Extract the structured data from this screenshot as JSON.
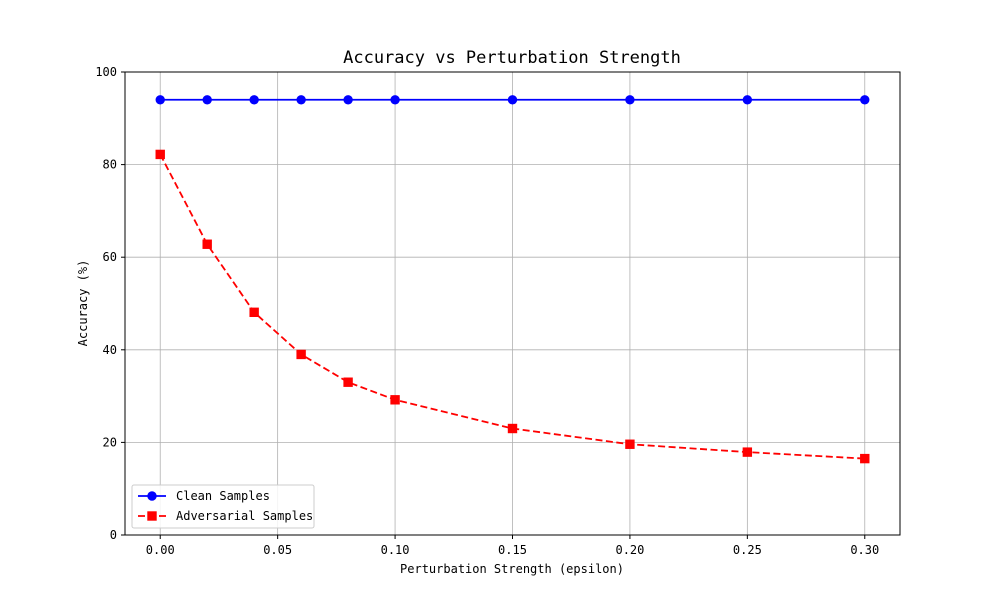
{
  "chart_data": {
    "type": "line",
    "title": "Accuracy vs Perturbation Strength",
    "xlabel": "Perturbation Strength (epsilon)",
    "ylabel": "Accuracy (%)",
    "x": [
      0.0,
      0.02,
      0.04,
      0.06,
      0.08,
      0.1,
      0.15,
      0.2,
      0.25,
      0.3
    ],
    "xlim": [
      -0.015,
      0.315
    ],
    "ylim": [
      0,
      100
    ],
    "xticks": [
      0.0,
      0.05,
      0.1,
      0.15,
      0.2,
      0.25,
      0.3
    ],
    "xtick_labels": [
      "0.00",
      "0.05",
      "0.10",
      "0.15",
      "0.20",
      "0.25",
      "0.30"
    ],
    "yticks": [
      0,
      20,
      40,
      60,
      80,
      100
    ],
    "ytick_labels": [
      "0",
      "20",
      "40",
      "60",
      "80",
      "100"
    ],
    "grid": true,
    "legend_position": "lower-left",
    "series": [
      {
        "name": "Clean Samples",
        "color": "#0000ff",
        "marker": "circle",
        "linestyle": "solid",
        "values": [
          94,
          94,
          94,
          94,
          94,
          94,
          94,
          94,
          94,
          94
        ]
      },
      {
        "name": "Adversarial Samples",
        "color": "#ff0000",
        "marker": "square",
        "linestyle": "dashed",
        "values": [
          82.2,
          62.8,
          48.1,
          39.0,
          33.0,
          29.2,
          23.0,
          19.6,
          17.9,
          16.5
        ]
      }
    ]
  }
}
